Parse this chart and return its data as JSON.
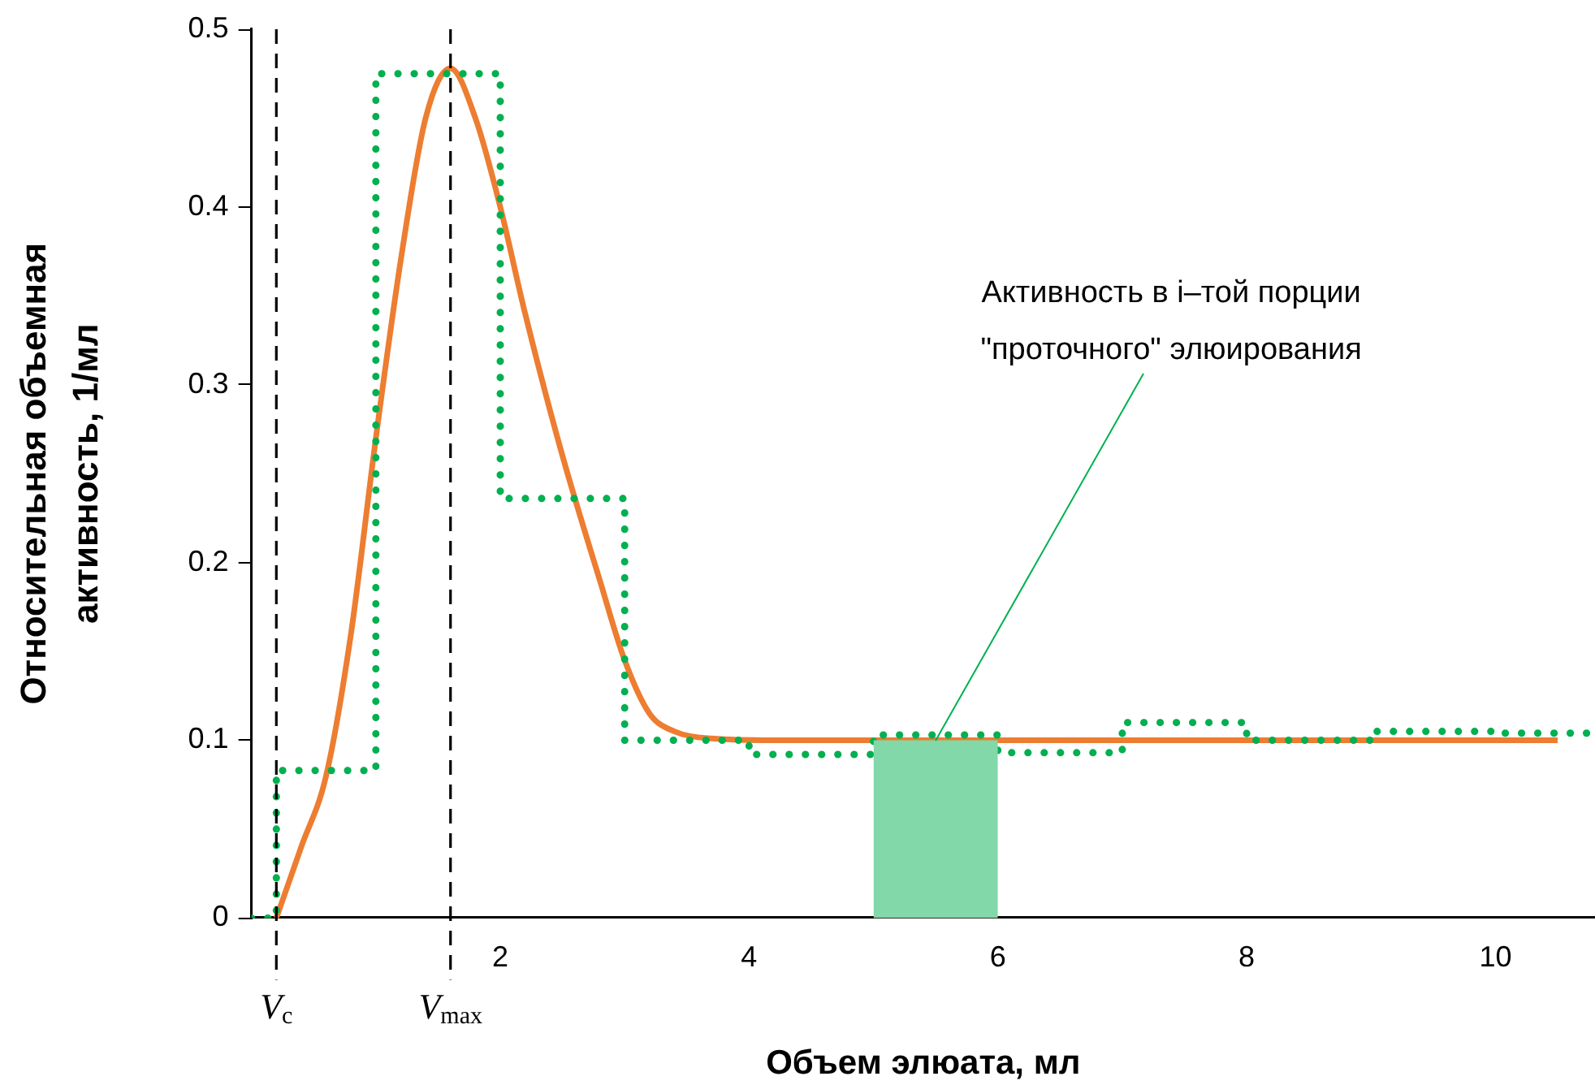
{
  "chart_data": {
    "type": "line",
    "xlabel": "Объем элюата, мл",
    "ylabel": "Относительная объемная\nактивность, 1/мл",
    "xlim": [
      0,
      10.8
    ],
    "xticks": [
      2,
      4,
      6,
      8,
      10
    ],
    "ylim": [
      0,
      0.5
    ],
    "yticks": [
      0,
      0.1,
      0.2,
      0.3,
      0.4,
      0.5
    ],
    "grid": false,
    "legend": false,
    "series": [
      {
        "type": "area",
        "color": "#82d8a8",
        "x": [
          5,
          6
        ],
        "values": [
          0.1,
          0.1
        ]
      },
      {
        "type": "step",
        "color": "#00b050",
        "line_style": "dotted",
        "x": [
          0,
          0.2,
          1,
          2,
          3,
          4,
          5,
          6,
          7,
          8,
          9,
          10,
          10.8
        ],
        "values": [
          0,
          0.083,
          0.475,
          0.236,
          0.1,
          0.092,
          0.103,
          0.093,
          0.11,
          0.1,
          0.105,
          0.104,
          0.104
        ]
      },
      {
        "color": "#ed7d31",
        "line_style": "solid",
        "x": [
          0.2,
          0.4,
          0.6,
          0.8,
          1.0,
          1.2,
          1.4,
          1.6,
          1.8,
          2.0,
          2.2,
          2.5,
          2.8,
          3.0,
          3.2,
          3.4,
          3.7,
          4.2,
          5,
          6,
          8,
          10.5
        ],
        "values": [
          0,
          0.04,
          0.08,
          0.16,
          0.27,
          0.37,
          0.45,
          0.478,
          0.45,
          0.4,
          0.34,
          0.26,
          0.19,
          0.145,
          0.115,
          0.105,
          0.101,
          0.1,
          0.1,
          0.1,
          0.1,
          0.1
        ]
      }
    ],
    "ref_lines": [
      {
        "axis": "x",
        "value": 0.2,
        "label": "V$_{c}$",
        "line_style": "dashed",
        "color": "#000000"
      },
      {
        "axis": "x",
        "value": 1.6,
        "label": "V$_{max}$",
        "line_style": "dashed",
        "color": "#000000"
      }
    ],
    "annotations": [
      {
        "text": "Активность в i–той порции\n\"проточного\" элюирования",
        "x": 5.5,
        "y": 0.1
      }
    ]
  }
}
